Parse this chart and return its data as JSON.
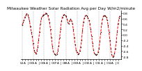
{
  "title": "Milwaukee Weather Solar Radiation Avg per Day W/m2/minute",
  "title_fontsize": 4.2,
  "line_color": "red",
  "line_style": "--",
  "line_width": 0.7,
  "marker": "o",
  "marker_size": 0.7,
  "marker_color": "black",
  "background_color": "white",
  "grid_color": "#999999",
  "ylim": [
    -0.9,
    0.9
  ],
  "ylabel_fontsize": 3.2,
  "xlabel_fontsize": 3.0,
  "num_years": 9,
  "year_start": 2004,
  "values": [
    0.35,
    0.45,
    0.55,
    0.65,
    0.72,
    0.78,
    0.75,
    0.65,
    0.52,
    0.3,
    0.1,
    -0.05,
    -0.3,
    -0.55,
    -0.65,
    -0.7,
    -0.6,
    -0.45,
    -0.2,
    0.1,
    0.4,
    0.6,
    0.7,
    0.72,
    0.75,
    0.78,
    0.8,
    0.78,
    0.72,
    0.6,
    0.45,
    0.2,
    -0.1,
    -0.4,
    -0.6,
    -0.7,
    -0.72,
    -0.75,
    -0.72,
    -0.6,
    -0.4,
    -0.1,
    0.2,
    0.5,
    0.65,
    0.72,
    0.75,
    0.72,
    0.68,
    0.6,
    0.45,
    0.4,
    0.52,
    0.58,
    0.5,
    0.42,
    0.2,
    -0.1,
    -0.35,
    -0.55,
    -0.65,
    -0.72,
    -0.7,
    -0.6,
    -0.45,
    -0.2,
    0.15,
    0.45,
    0.62,
    0.7,
    0.72,
    0.68,
    0.62,
    0.55,
    0.4,
    0.2,
    -0.05,
    -0.3,
    -0.55,
    -0.68,
    -0.72,
    -0.75,
    -0.72,
    -0.65,
    -0.5,
    -0.25,
    0.1,
    0.4,
    0.6,
    0.7,
    0.72,
    0.7,
    0.65,
    0.55,
    0.35,
    0.1,
    -0.2,
    -0.5,
    -0.72,
    -0.82,
    -0.8,
    -0.7,
    -0.5,
    -0.25,
    0.1,
    0.4,
    0.62,
    0.7
  ],
  "x_tick_interval": 12,
  "yticks": [
    0.8,
    0.6,
    0.4,
    0.2,
    0.0,
    -0.2,
    -0.4,
    -0.6,
    -0.8
  ]
}
